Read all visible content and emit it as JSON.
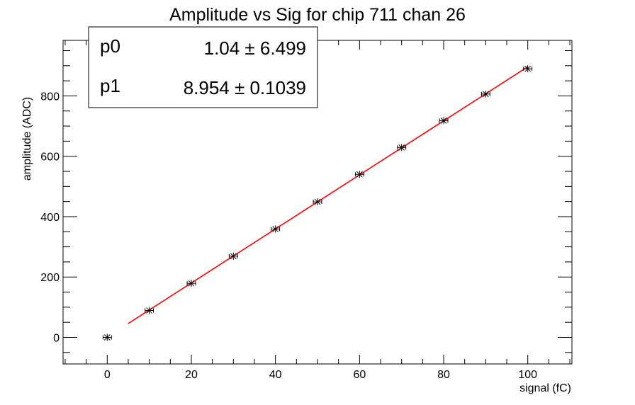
{
  "chart_data": {
    "type": "scatter",
    "title": "Amplitude vs Sig for chip 711 chan 26",
    "xlabel": "signal (fC)",
    "ylabel": "amplitude (ADC)",
    "xlim": [
      -10.5,
      110.5
    ],
    "ylim": [
      -88,
      984
    ],
    "x_ticks": [
      0,
      20,
      40,
      60,
      80,
      100
    ],
    "y_ticks": [
      0,
      200,
      400,
      600,
      800
    ],
    "grid": false,
    "series": [
      {
        "x": [
          0,
          10,
          20,
          30,
          40,
          50,
          60,
          70,
          80,
          90,
          100
        ],
        "y": [
          0,
          89,
          179,
          269,
          359,
          449,
          540,
          629,
          718,
          806,
          890
        ],
        "x_err": 1,
        "marker": "star",
        "color": "#000000"
      }
    ],
    "fit": {
      "type": "line",
      "color": "#ff0000",
      "x_range": [
        5,
        100
      ],
      "p0": 1.04,
      "p1": 8.954
    },
    "stats": {
      "position": "top-left",
      "rows": [
        {
          "name": "p0",
          "value": "1.04 ± 6.499"
        },
        {
          "name": "p1",
          "value": "8.954 ± 0.1039"
        }
      ]
    }
  }
}
